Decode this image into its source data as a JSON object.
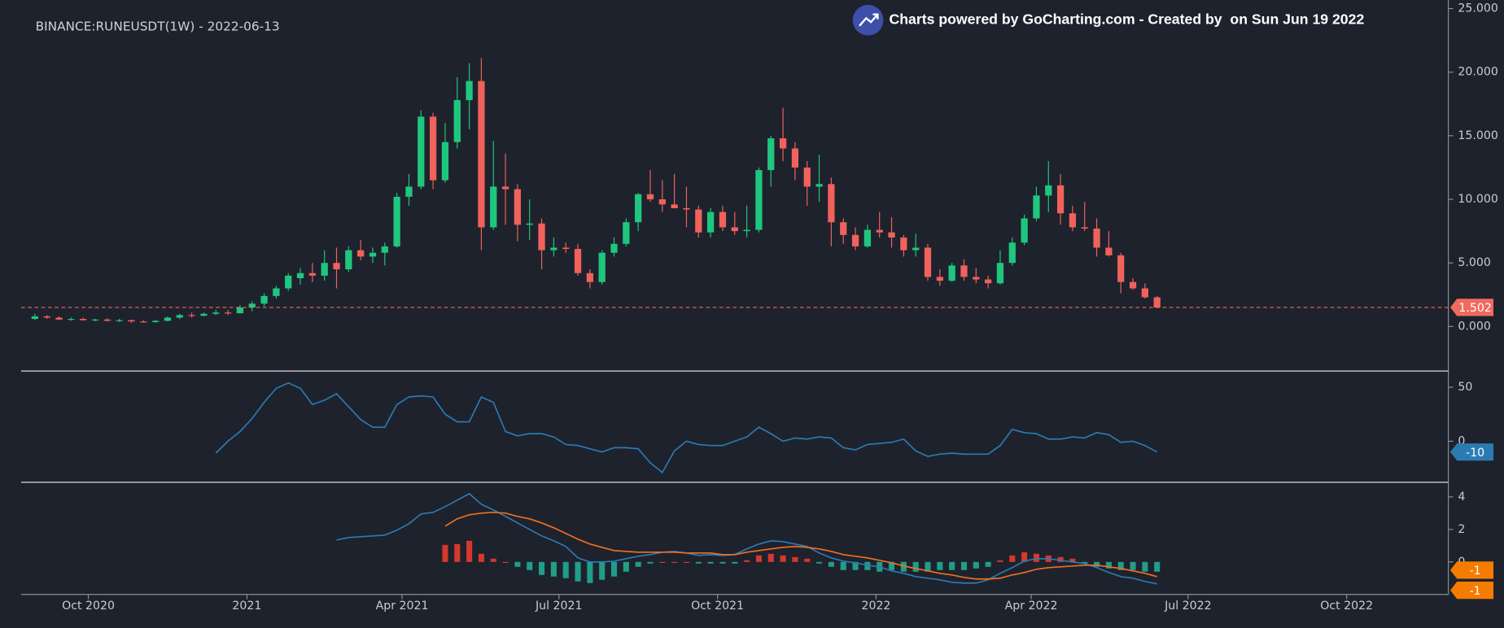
{
  "title": "BINANCE:RUNEUSDT(1W) - 2022-06-13",
  "watermark": "Charts powered by GoCharting.com - Created by  on Sun Jun 19 2022",
  "chart_data": [
    {
      "type": "candlestick",
      "x": [
        "2020-08-31",
        "2020-09-07",
        "2020-09-14",
        "2020-09-21",
        "2020-09-28",
        "2020-10-05",
        "2020-10-12",
        "2020-10-19",
        "2020-10-26",
        "2020-11-02",
        "2020-11-09",
        "2020-11-16",
        "2020-11-23",
        "2020-11-30",
        "2020-12-07",
        "2020-12-14",
        "2020-12-21",
        "2020-12-28",
        "2021-01-04",
        "2021-01-11",
        "2021-01-18",
        "2021-01-25",
        "2021-02-01",
        "2021-02-08",
        "2021-02-15",
        "2021-02-22",
        "2021-03-01",
        "2021-03-08",
        "2021-03-15",
        "2021-03-22",
        "2021-03-29",
        "2021-04-05",
        "2021-04-12",
        "2021-04-19",
        "2021-04-26",
        "2021-05-03",
        "2021-05-10",
        "2021-05-17",
        "2021-05-24",
        "2021-05-31",
        "2021-06-07",
        "2021-06-14",
        "2021-06-21",
        "2021-06-28",
        "2021-07-05",
        "2021-07-12",
        "2021-07-19",
        "2021-07-26",
        "2021-08-02",
        "2021-08-09",
        "2021-08-16",
        "2021-08-23",
        "2021-08-30",
        "2021-09-06",
        "2021-09-13",
        "2021-09-20",
        "2021-09-27",
        "2021-10-04",
        "2021-10-11",
        "2021-10-18",
        "2021-10-25",
        "2021-11-01",
        "2021-11-08",
        "2021-11-15",
        "2021-11-22",
        "2021-11-29",
        "2021-12-06",
        "2021-12-13",
        "2021-12-20",
        "2021-12-27",
        "2022-01-03",
        "2022-01-10",
        "2022-01-17",
        "2022-01-24",
        "2022-01-31",
        "2022-02-07",
        "2022-02-14",
        "2022-02-21",
        "2022-02-28",
        "2022-03-07",
        "2022-03-14",
        "2022-03-21",
        "2022-03-28",
        "2022-04-04",
        "2022-04-11",
        "2022-04-18",
        "2022-04-25",
        "2022-05-02",
        "2022-05-09",
        "2022-05-16",
        "2022-05-23",
        "2022-05-30",
        "2022-06-06",
        "2022-06-13"
      ],
      "open": [
        0.6,
        0.8,
        0.7,
        0.55,
        0.6,
        0.5,
        0.55,
        0.45,
        0.5,
        0.4,
        0.35,
        0.45,
        0.7,
        0.9,
        0.85,
        1.0,
        1.1,
        1.05,
        1.5,
        1.8,
        2.4,
        3.0,
        3.8,
        4.2,
        4.0,
        5.0,
        4.5,
        6.0,
        5.5,
        5.8,
        6.3,
        10.2,
        11.0,
        16.5,
        11.5,
        14.5,
        17.8,
        19.3,
        7.8,
        11.0,
        10.8,
        8.0,
        8.1,
        6.0,
        6.2,
        6.1,
        4.2,
        3.5,
        5.8,
        6.5,
        8.2,
        10.4,
        10.0,
        9.6,
        9.3,
        9.2,
        7.4,
        9.0,
        7.8,
        7.5,
        7.6,
        12.3,
        14.8,
        14.0,
        12.5,
        11.0,
        11.2,
        8.2,
        7.2,
        6.3,
        7.6,
        7.4,
        7.0,
        6.0,
        6.2,
        3.9,
        3.6,
        4.8,
        3.9,
        3.7,
        3.4,
        5.0,
        6.6,
        8.5,
        10.3,
        11.1,
        8.9,
        7.8,
        7.7,
        6.2,
        5.6,
        3.5,
        3.0,
        2.3
      ],
      "high": [
        1.0,
        0.9,
        0.8,
        0.7,
        0.7,
        0.6,
        0.65,
        0.6,
        0.55,
        0.5,
        0.5,
        0.8,
        1.0,
        1.1,
        1.1,
        1.3,
        1.3,
        1.7,
        2.0,
        2.6,
        3.2,
        4.2,
        4.6,
        5.0,
        6.0,
        6.2,
        6.3,
        6.8,
        6.2,
        6.6,
        10.5,
        12.0,
        17.0,
        16.8,
        16.0,
        19.6,
        20.7,
        21.1,
        14.6,
        13.6,
        11.2,
        10.0,
        8.5,
        7.0,
        6.6,
        6.5,
        4.5,
        6.0,
        7.0,
        8.5,
        10.5,
        12.3,
        11.5,
        12.0,
        11.0,
        9.5,
        9.3,
        9.5,
        9.0,
        9.5,
        12.5,
        15.0,
        17.2,
        14.5,
        13.0,
        13.5,
        11.7,
        8.5,
        7.8,
        8.0,
        9.0,
        8.6,
        7.2,
        7.3,
        6.5,
        4.5,
        5.0,
        5.3,
        4.6,
        4.0,
        6.0,
        7.0,
        8.8,
        11.0,
        13.0,
        12.0,
        9.5,
        9.8,
        8.5,
        7.5,
        5.8,
        3.8,
        3.4,
        2.4
      ],
      "low": [
        0.5,
        0.6,
        0.5,
        0.45,
        0.45,
        0.4,
        0.4,
        0.35,
        0.3,
        0.3,
        0.3,
        0.4,
        0.6,
        0.7,
        0.8,
        0.9,
        0.9,
        1.0,
        1.2,
        1.6,
        2.2,
        2.8,
        3.3,
        3.5,
        3.6,
        3.0,
        4.3,
        5.2,
        5.0,
        4.8,
        6.2,
        9.5,
        10.8,
        10.8,
        11.3,
        14.0,
        15.5,
        6.0,
        7.6,
        8.0,
        6.7,
        6.8,
        4.5,
        5.5,
        5.8,
        4.0,
        3.0,
        3.3,
        5.5,
        6.3,
        7.5,
        9.8,
        9.0,
        9.3,
        7.8,
        7.0,
        7.0,
        7.5,
        7.2,
        7.0,
        7.4,
        11.0,
        13.0,
        11.5,
        9.5,
        9.8,
        6.3,
        6.5,
        6.0,
        6.2,
        7.0,
        6.2,
        5.5,
        5.5,
        3.6,
        3.2,
        3.5,
        3.6,
        3.4,
        3.0,
        3.3,
        4.8,
        6.4,
        8.3,
        9.0,
        8.0,
        7.5,
        7.5,
        5.5,
        5.5,
        2.6,
        2.9,
        2.2,
        1.45
      ],
      "close": [
        0.8,
        0.7,
        0.55,
        0.6,
        0.5,
        0.55,
        0.45,
        0.5,
        0.4,
        0.35,
        0.45,
        0.7,
        0.9,
        0.85,
        1.0,
        1.1,
        1.05,
        1.5,
        1.8,
        2.4,
        3.0,
        4.0,
        4.2,
        4.0,
        5.0,
        4.5,
        6.0,
        5.5,
        5.8,
        6.3,
        10.2,
        11.0,
        16.5,
        11.5,
        14.5,
        17.8,
        19.3,
        7.8,
        11.0,
        10.8,
        8.0,
        8.1,
        6.0,
        6.2,
        6.1,
        4.2,
        3.5,
        5.8,
        6.5,
        8.2,
        10.4,
        10.0,
        9.6,
        9.3,
        9.2,
        7.4,
        9.0,
        7.8,
        7.5,
        7.6,
        12.3,
        14.8,
        14.0,
        12.5,
        11.0,
        11.2,
        8.2,
        7.2,
        6.3,
        7.6,
        7.4,
        7.0,
        6.0,
        6.2,
        3.9,
        3.6,
        4.8,
        3.9,
        3.7,
        3.4,
        5.0,
        6.6,
        8.5,
        10.3,
        11.1,
        8.9,
        7.8,
        7.7,
        6.2,
        5.6,
        3.5,
        3.0,
        2.3,
        1.502
      ],
      "up_color": "#1fc77e",
      "down_color": "#f0625b",
      "last_color": "#ef6a5f",
      "xlim": [
        "2020-08-23",
        "2022-11-29"
      ],
      "xticks": [
        {
          "value": "2020-10-01",
          "label": "Oct 2020"
        },
        {
          "value": "2021-01-01",
          "label": "2021"
        },
        {
          "value": "2021-04-01",
          "label": "Apr 2021"
        },
        {
          "value": "2021-07-01",
          "label": "Jul 2021"
        },
        {
          "value": "2021-10-01",
          "label": "Oct 2021"
        },
        {
          "value": "2022-01-01",
          "label": "2022"
        },
        {
          "value": "2022-04-01",
          "label": "Apr 2022"
        },
        {
          "value": "2022-07-01",
          "label": "Jul 2022"
        },
        {
          "value": "2022-10-01",
          "label": "Oct 2022"
        }
      ],
      "ylim": [
        -3.5,
        25.37
      ],
      "yticks": [
        {
          "value": 0,
          "label": "0.000"
        },
        {
          "value": 5,
          "label": "5.000"
        },
        {
          "value": 10,
          "label": "10.000"
        },
        {
          "value": 15,
          "label": "15.000"
        },
        {
          "value": 20,
          "label": "20.000"
        },
        {
          "value": 25,
          "label": "25.000"
        }
      ]
    },
    {
      "type": "line",
      "series": [
        {
          "color": "#2b7bb3",
          "values": [
            null,
            null,
            null,
            null,
            null,
            null,
            null,
            null,
            null,
            null,
            null,
            null,
            null,
            null,
            null,
            -11,
            0,
            9,
            21,
            36,
            49,
            54,
            49,
            34,
            38,
            44,
            32,
            20,
            13,
            13,
            34,
            41,
            42,
            41,
            25,
            18,
            18,
            41,
            36,
            9,
            5,
            7,
            7,
            4,
            -3,
            -4,
            -7,
            -10,
            -6,
            -6,
            -7,
            -20,
            -29,
            -9,
            0,
            -3,
            -4,
            -4,
            0,
            4,
            13,
            7,
            0,
            3,
            2,
            4,
            3,
            -6,
            -8,
            -3,
            -2,
            -1,
            2,
            -9,
            -14,
            -12,
            -11,
            -12,
            -12,
            -12,
            -4,
            11,
            8,
            7,
            2,
            2,
            4,
            3,
            8,
            6,
            -1,
            0,
            -4,
            -10
          ]
        }
      ],
      "ylim": [
        -38,
        65
      ],
      "yticks": [
        50,
        0
      ]
    },
    {
      "type": "macd",
      "series": [
        {
          "color": "#2b7bb3",
          "last_label": "-1",
          "values": [
            null,
            null,
            null,
            null,
            null,
            null,
            null,
            null,
            null,
            null,
            null,
            null,
            null,
            null,
            null,
            null,
            null,
            null,
            null,
            null,
            null,
            null,
            null,
            null,
            null,
            1.35,
            1.5,
            1.55,
            1.6,
            1.65,
            1.95,
            2.35,
            2.95,
            3.05,
            3.4,
            3.8,
            4.2,
            3.55,
            3.2,
            2.8,
            2.4,
            2.0,
            1.6,
            1.3,
            0.95,
            0.25,
            0,
            0,
            0.05,
            0.2,
            0.35,
            0.45,
            0.6,
            0.65,
            0.55,
            0.4,
            0.45,
            0.4,
            0.45,
            0.8,
            1.1,
            1.3,
            1.25,
            1.1,
            0.95,
            0.55,
            0.25,
            0.05,
            -0.05,
            -0.2,
            -0.3,
            -0.55,
            -0.7,
            -0.9,
            -1.0,
            -1.1,
            -1.25,
            -1.3,
            -1.3,
            -1.1,
            -0.7,
            -0.35,
            0.05,
            0.2,
            0.2,
            0.1,
            0,
            -0.1,
            -0.35,
            -0.65,
            -0.9,
            -1.0,
            -1.2,
            -1.35
          ]
        },
        {
          "color": "#f07020",
          "last_label": "-1",
          "values": [
            null,
            null,
            null,
            null,
            null,
            null,
            null,
            null,
            null,
            null,
            null,
            null,
            null,
            null,
            null,
            null,
            null,
            null,
            null,
            null,
            null,
            null,
            null,
            null,
            null,
            null,
            null,
            null,
            null,
            null,
            null,
            null,
            null,
            null,
            2.2,
            2.65,
            2.9,
            3.0,
            3.05,
            3.0,
            2.8,
            2.65,
            2.4,
            2.1,
            1.75,
            1.4,
            1.1,
            0.9,
            0.7,
            0.65,
            0.6,
            0.6,
            0.6,
            0.6,
            0.55,
            0.55,
            0.55,
            0.45,
            0.45,
            0.6,
            0.7,
            0.8,
            0.9,
            0.95,
            0.9,
            0.8,
            0.65,
            0.45,
            0.35,
            0.25,
            0.1,
            -0.05,
            -0.25,
            -0.4,
            -0.55,
            -0.7,
            -0.8,
            -0.95,
            -1.05,
            -1.05,
            -1.0,
            -0.8,
            -0.65,
            -0.45,
            -0.35,
            -0.3,
            -0.25,
            -0.2,
            -0.2,
            -0.3,
            -0.4,
            -0.55,
            -0.7,
            -0.9
          ]
        }
      ],
      "histogram": {
        "up_color": "#d5392b",
        "down_color": "#1f9e89",
        "values": [
          null,
          null,
          null,
          null,
          null,
          null,
          null,
          null,
          null,
          null,
          null,
          null,
          null,
          null,
          null,
          null,
          null,
          null,
          null,
          null,
          null,
          null,
          null,
          null,
          null,
          null,
          null,
          null,
          null,
          null,
          null,
          null,
          null,
          null,
          1.05,
          1.1,
          1.3,
          0.5,
          0.2,
          0,
          -0.3,
          -0.5,
          -0.8,
          -0.9,
          -1.0,
          -1.2,
          -1.3,
          -1.1,
          -0.9,
          -0.6,
          -0.3,
          -0.1,
          0,
          0,
          0,
          -0.1,
          -0.1,
          -0.1,
          -0.1,
          0.1,
          0.4,
          0.5,
          0.4,
          0.3,
          0.2,
          -0.1,
          -0.3,
          -0.5,
          -0.5,
          -0.5,
          -0.6,
          -0.5,
          -0.6,
          -0.6,
          -0.6,
          -0.5,
          -0.5,
          -0.5,
          -0.4,
          -0.3,
          0.1,
          0.4,
          0.6,
          0.5,
          0.4,
          0.3,
          0.2,
          -0.1,
          -0.3,
          -0.4,
          -0.5,
          -0.5,
          -0.6,
          -0.6
        ]
      },
      "label_color": "#f57c00",
      "ylim": [
        -2.0,
        4.9
      ],
      "yticks": [
        4,
        2,
        0
      ]
    }
  ]
}
